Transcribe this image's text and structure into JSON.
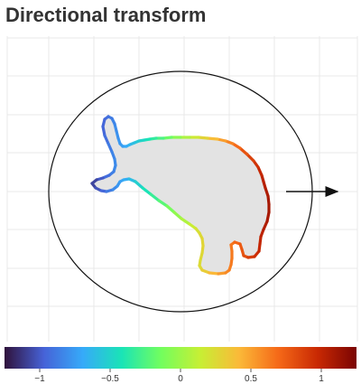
{
  "title": "Directional transform",
  "direction_arrow": {
    "icon": "arrow-right-icon"
  },
  "colorbar": {
    "min": -1.25,
    "max": 1.25,
    "ticks": [
      {
        "value": -1,
        "label": "−1"
      },
      {
        "value": -0.5,
        "label": "−0.5"
      },
      {
        "value": 0,
        "label": "0"
      },
      {
        "value": 0.5,
        "label": "0.5"
      },
      {
        "value": 1,
        "label": "1"
      }
    ],
    "colormap": [
      "#30123b",
      "#4662d7",
      "#36aaf9",
      "#1ae4b6",
      "#72fe5e",
      "#c7ef34",
      "#fbb938",
      "#f56918",
      "#c92903",
      "#7a0403"
    ]
  },
  "colors": {
    "shape_fill": "#e3e3e3",
    "grid": "#e8e8e8",
    "circle": "#111111",
    "title": "#333333"
  }
}
